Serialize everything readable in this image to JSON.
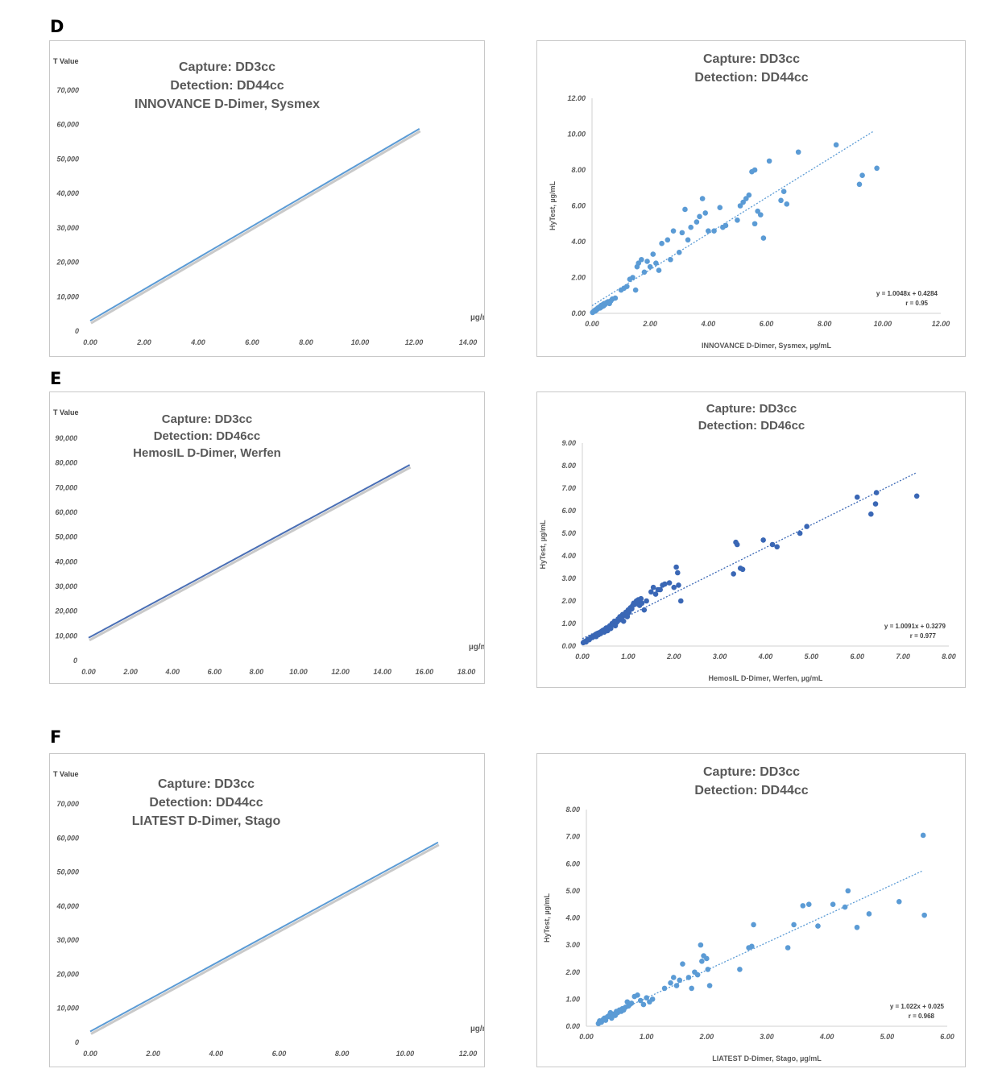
{
  "sections": [
    "D",
    "E",
    "F"
  ],
  "chart_data": [
    {
      "id": "D-left",
      "type": "line",
      "title_lines": [
        "Capture: DD3cc",
        "Detection: DD44cc",
        "INNOVANCE D-Dimer, Sysmex"
      ],
      "ylabel": "T Value",
      "xlabel": "µg/mL",
      "xlim": [
        0,
        14
      ],
      "ylim": [
        0,
        70000
      ],
      "xticks": [
        "0.00",
        "2.00",
        "4.00",
        "6.00",
        "8.00",
        "10.00",
        "12.00",
        "14.00"
      ],
      "yticks": [
        "0",
        "10,000",
        "20,000",
        "30,000",
        "40,000",
        "50,000",
        "60,000",
        "70,000"
      ],
      "line": {
        "x": [
          0,
          12.2
        ],
        "y": [
          3000,
          58800
        ],
        "color": "#5b9bd5"
      }
    },
    {
      "id": "D-right",
      "type": "scatter",
      "title_lines": [
        "Capture: DD3cc",
        "Detection: DD44cc"
      ],
      "ylabel": "HyTest, µg/mL",
      "xlabel": "INNOVANCE D-Dimer, Sysmex, µg/mL",
      "xlim": [
        0,
        12
      ],
      "ylim": [
        0,
        12
      ],
      "xticks": [
        "0.00",
        "2.00",
        "4.00",
        "6.00",
        "8.00",
        "10.00",
        "12.00"
      ],
      "yticks": [
        "0.00",
        "2.00",
        "4.00",
        "6.00",
        "8.00",
        "10.00",
        "12.00"
      ],
      "annotation": [
        "y = 1.0048x + 0.4284",
        "r = 0.95"
      ],
      "trend": {
        "slope": 1.0048,
        "intercept": 0.4284,
        "x": [
          0,
          9.7
        ]
      },
      "color": "#5b9bd5",
      "points": [
        [
          0.02,
          0.05
        ],
        [
          0.05,
          0.1
        ],
        [
          0.08,
          0.15
        ],
        [
          0.1,
          0.12
        ],
        [
          0.12,
          0.2
        ],
        [
          0.15,
          0.18
        ],
        [
          0.18,
          0.25
        ],
        [
          0.2,
          0.3
        ],
        [
          0.22,
          0.28
        ],
        [
          0.25,
          0.35
        ],
        [
          0.28,
          0.3
        ],
        [
          0.3,
          0.4
        ],
        [
          0.32,
          0.45
        ],
        [
          0.35,
          0.38
        ],
        [
          0.38,
          0.5
        ],
        [
          0.4,
          0.42
        ],
        [
          0.42,
          0.55
        ],
        [
          0.45,
          0.5
        ],
        [
          0.5,
          0.6
        ],
        [
          0.55,
          0.65
        ],
        [
          0.6,
          0.55
        ],
        [
          0.65,
          0.7
        ],
        [
          0.7,
          0.8
        ],
        [
          0.8,
          0.85
        ],
        [
          1.0,
          1.3
        ],
        [
          1.1,
          1.4
        ],
        [
          1.2,
          1.5
        ],
        [
          1.3,
          1.9
        ],
        [
          1.4,
          2.0
        ],
        [
          1.5,
          1.3
        ],
        [
          1.55,
          2.6
        ],
        [
          1.6,
          2.8
        ],
        [
          1.7,
          3.0
        ],
        [
          1.8,
          2.3
        ],
        [
          1.9,
          2.9
        ],
        [
          2.0,
          2.6
        ],
        [
          2.1,
          3.3
        ],
        [
          2.2,
          2.8
        ],
        [
          2.3,
          2.4
        ],
        [
          2.4,
          3.9
        ],
        [
          2.6,
          4.1
        ],
        [
          2.7,
          3.0
        ],
        [
          2.8,
          4.6
        ],
        [
          3.0,
          3.4
        ],
        [
          3.1,
          4.5
        ],
        [
          3.2,
          5.8
        ],
        [
          3.3,
          4.1
        ],
        [
          3.4,
          4.8
        ],
        [
          3.6,
          5.1
        ],
        [
          3.7,
          5.4
        ],
        [
          3.8,
          6.4
        ],
        [
          3.9,
          5.6
        ],
        [
          4.0,
          4.6
        ],
        [
          4.2,
          4.6
        ],
        [
          4.4,
          5.9
        ],
        [
          4.5,
          4.8
        ],
        [
          4.6,
          4.9
        ],
        [
          5.0,
          5.2
        ],
        [
          5.1,
          6.0
        ],
        [
          5.2,
          6.2
        ],
        [
          5.3,
          6.4
        ],
        [
          5.4,
          6.6
        ],
        [
          5.5,
          7.9
        ],
        [
          5.6,
          8.0
        ],
        [
          5.6,
          5.0
        ],
        [
          5.7,
          5.7
        ],
        [
          5.8,
          5.5
        ],
        [
          5.9,
          4.2
        ],
        [
          6.1,
          8.5
        ],
        [
          6.5,
          6.3
        ],
        [
          6.6,
          6.8
        ],
        [
          6.7,
          6.1
        ],
        [
          7.1,
          9.0
        ],
        [
          8.4,
          9.4
        ],
        [
          9.2,
          7.2
        ],
        [
          9.3,
          7.7
        ],
        [
          9.8,
          8.1
        ]
      ]
    },
    {
      "id": "E-left",
      "type": "line",
      "title_lines": [
        "Capture: DD3cc",
        "Detection: DD46cc",
        "HemosIL D-Dimer, Werfen"
      ],
      "ylabel": "T Value",
      "xlabel": "µg/mL",
      "xlim": [
        0,
        18
      ],
      "ylim": [
        0,
        90000
      ],
      "xticks": [
        "0.00",
        "2.00",
        "4.00",
        "6.00",
        "8.00",
        "10.00",
        "12.00",
        "14.00",
        "16.00",
        "18.00"
      ],
      "yticks": [
        "0",
        "10,000",
        "20,000",
        "30,000",
        "40,000",
        "50,000",
        "60,000",
        "70,000",
        "80,000",
        "90,000"
      ],
      "line": {
        "x": [
          0,
          15.3
        ],
        "y": [
          9200,
          79200
        ],
        "color": "#4a6fb5"
      }
    },
    {
      "id": "E-right",
      "type": "scatter",
      "title_lines": [
        "Capture: DD3cc",
        "Detection: DD46cc"
      ],
      "ylabel": "HyTest, µg/mL",
      "xlabel": "HemosIL D-Dimer, Werfen, µg/mL",
      "xlim": [
        0,
        8
      ],
      "ylim": [
        0,
        9
      ],
      "xticks": [
        "0.00",
        "1.00",
        "2.00",
        "3.00",
        "4.00",
        "5.00",
        "6.00",
        "7.00",
        "8.00"
      ],
      "yticks": [
        "0.00",
        "1.00",
        "2.00",
        "3.00",
        "4.00",
        "5.00",
        "6.00",
        "7.00",
        "8.00",
        "9.00"
      ],
      "annotation": [
        "y = 1.0091x + 0.3279",
        "r = 0.977"
      ],
      "trend": {
        "slope": 1.0091,
        "intercept": 0.3279,
        "x": [
          0,
          7.3
        ]
      },
      "color": "#3a67b5",
      "points": [
        [
          0.02,
          0.15
        ],
        [
          0.05,
          0.2
        ],
        [
          0.08,
          0.18
        ],
        [
          0.1,
          0.25
        ],
        [
          0.12,
          0.3
        ],
        [
          0.15,
          0.28
        ],
        [
          0.18,
          0.35
        ],
        [
          0.2,
          0.4
        ],
        [
          0.22,
          0.38
        ],
        [
          0.25,
          0.45
        ],
        [
          0.28,
          0.5
        ],
        [
          0.3,
          0.42
        ],
        [
          0.32,
          0.55
        ],
        [
          0.35,
          0.5
        ],
        [
          0.38,
          0.6
        ],
        [
          0.4,
          0.55
        ],
        [
          0.42,
          0.65
        ],
        [
          0.45,
          0.7
        ],
        [
          0.48,
          0.62
        ],
        [
          0.5,
          0.75
        ],
        [
          0.52,
          0.8
        ],
        [
          0.55,
          0.68
        ],
        [
          0.58,
          0.85
        ],
        [
          0.6,
          0.9
        ],
        [
          0.62,
          0.78
        ],
        [
          0.65,
          1.0
        ],
        [
          0.68,
          0.95
        ],
        [
          0.7,
          1.1
        ],
        [
          0.72,
          0.9
        ],
        [
          0.75,
          1.05
        ],
        [
          0.78,
          1.2
        ],
        [
          0.8,
          1.15
        ],
        [
          0.82,
          1.3
        ],
        [
          0.85,
          1.25
        ],
        [
          0.88,
          1.4
        ],
        [
          0.9,
          1.1
        ],
        [
          0.92,
          1.35
        ],
        [
          0.95,
          1.5
        ],
        [
          0.98,
          1.3
        ],
        [
          1.0,
          1.6
        ],
        [
          1.02,
          1.5
        ],
        [
          1.05,
          1.7
        ],
        [
          1.08,
          1.65
        ],
        [
          1.1,
          1.8
        ],
        [
          1.12,
          1.9
        ],
        [
          1.15,
          1.85
        ],
        [
          1.18,
          2.0
        ],
        [
          1.2,
          1.95
        ],
        [
          1.22,
          2.05
        ],
        [
          1.25,
          1.8
        ],
        [
          1.28,
          2.1
        ],
        [
          1.3,
          1.9
        ],
        [
          1.35,
          1.6
        ],
        [
          1.4,
          2.0
        ],
        [
          1.5,
          2.4
        ],
        [
          1.55,
          2.6
        ],
        [
          1.6,
          2.3
        ],
        [
          1.65,
          2.5
        ],
        [
          1.7,
          2.5
        ],
        [
          1.75,
          2.7
        ],
        [
          1.8,
          2.75
        ],
        [
          1.9,
          2.8
        ],
        [
          2.0,
          2.6
        ],
        [
          2.05,
          3.5
        ],
        [
          2.08,
          3.25
        ],
        [
          2.1,
          2.7
        ],
        [
          2.15,
          2.0
        ],
        [
          3.3,
          3.2
        ],
        [
          3.35,
          4.6
        ],
        [
          3.38,
          4.5
        ],
        [
          3.45,
          3.45
        ],
        [
          3.5,
          3.4
        ],
        [
          3.95,
          4.7
        ],
        [
          4.15,
          4.5
        ],
        [
          4.25,
          4.4
        ],
        [
          4.75,
          5.0
        ],
        [
          4.9,
          5.3
        ],
        [
          6.0,
          6.6
        ],
        [
          6.3,
          5.85
        ],
        [
          6.4,
          6.3
        ],
        [
          6.42,
          6.8
        ],
        [
          7.3,
          6.65
        ]
      ]
    },
    {
      "id": "F-left",
      "type": "line",
      "title_lines": [
        "Capture: DD3cc",
        "Detection: DD44cc",
        "LIATEST D-Dimer, Stago"
      ],
      "ylabel": "T Value",
      "xlabel": "µg/mL",
      "xlim": [
        0,
        12
      ],
      "ylim": [
        0,
        70000
      ],
      "xticks": [
        "0.00",
        "2.00",
        "4.00",
        "6.00",
        "8.00",
        "10.00",
        "12.00"
      ],
      "yticks": [
        "0",
        "10,000",
        "20,000",
        "30,000",
        "40,000",
        "50,000",
        "60,000",
        "70,000"
      ],
      "line": {
        "x": [
          0,
          11.05
        ],
        "y": [
          3200,
          58700
        ],
        "color": "#5b9bd5"
      }
    },
    {
      "id": "F-right",
      "type": "scatter",
      "title_lines": [
        "Capture: DD3cc",
        "Detection: DD44cc"
      ],
      "ylabel": "HyTest, µg/mL",
      "xlabel": "LIATEST D-Dimer, Stago, µg/mL",
      "xlim": [
        0,
        6
      ],
      "ylim": [
        0,
        8
      ],
      "xticks": [
        "0.00",
        "1.00",
        "2.00",
        "3.00",
        "4.00",
        "5.00",
        "6.00"
      ],
      "yticks": [
        "0.00",
        "1.00",
        "2.00",
        "3.00",
        "4.00",
        "5.00",
        "6.00",
        "7.00",
        "8.00"
      ],
      "annotation": [
        "y = 1.022x + 0.025",
        "r = 0.968"
      ],
      "trend": {
        "slope": 1.022,
        "intercept": 0.025,
        "x": [
          0.2,
          5.6
        ]
      },
      "color": "#5b9bd5",
      "points": [
        [
          0.2,
          0.1
        ],
        [
          0.22,
          0.2
        ],
        [
          0.25,
          0.15
        ],
        [
          0.28,
          0.25
        ],
        [
          0.3,
          0.3
        ],
        [
          0.32,
          0.22
        ],
        [
          0.35,
          0.35
        ],
        [
          0.38,
          0.4
        ],
        [
          0.4,
          0.5
        ],
        [
          0.42,
          0.3
        ],
        [
          0.45,
          0.45
        ],
        [
          0.48,
          0.4
        ],
        [
          0.5,
          0.55
        ],
        [
          0.52,
          0.5
        ],
        [
          0.55,
          0.6
        ],
        [
          0.58,
          0.55
        ],
        [
          0.6,
          0.65
        ],
        [
          0.62,
          0.6
        ],
        [
          0.65,
          0.7
        ],
        [
          0.68,
          0.9
        ],
        [
          0.7,
          0.75
        ],
        [
          0.72,
          0.8
        ],
        [
          0.75,
          0.85
        ],
        [
          0.8,
          1.1
        ],
        [
          0.85,
          1.15
        ],
        [
          0.9,
          0.95
        ],
        [
          0.95,
          0.8
        ],
        [
          1.0,
          1.05
        ],
        [
          1.05,
          0.9
        ],
        [
          1.1,
          1.0
        ],
        [
          1.3,
          1.4
        ],
        [
          1.4,
          1.6
        ],
        [
          1.45,
          1.8
        ],
        [
          1.5,
          1.5
        ],
        [
          1.55,
          1.7
        ],
        [
          1.6,
          2.3
        ],
        [
          1.7,
          1.8
        ],
        [
          1.75,
          1.4
        ],
        [
          1.8,
          2.0
        ],
        [
          1.85,
          1.9
        ],
        [
          1.9,
          3.0
        ],
        [
          1.92,
          2.4
        ],
        [
          1.95,
          2.6
        ],
        [
          2.0,
          2.5
        ],
        [
          2.02,
          2.1
        ],
        [
          2.05,
          1.5
        ],
        [
          2.55,
          2.1
        ],
        [
          2.7,
          2.9
        ],
        [
          2.75,
          2.95
        ],
        [
          2.78,
          3.75
        ],
        [
          3.35,
          2.9
        ],
        [
          3.45,
          3.75
        ],
        [
          3.6,
          4.45
        ],
        [
          3.7,
          4.5
        ],
        [
          3.85,
          3.7
        ],
        [
          4.1,
          4.5
        ],
        [
          4.3,
          4.4
        ],
        [
          4.35,
          5.0
        ],
        [
          4.5,
          3.65
        ],
        [
          4.7,
          4.15
        ],
        [
          5.2,
          4.6
        ],
        [
          5.6,
          7.05
        ],
        [
          5.62,
          4.1
        ]
      ]
    }
  ]
}
